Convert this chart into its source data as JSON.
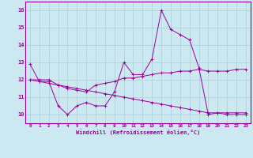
{
  "xlabel": "Windchill (Refroidissement éolien,°C)",
  "x": [
    0,
    1,
    2,
    3,
    4,
    5,
    6,
    7,
    8,
    9,
    10,
    11,
    12,
    13,
    14,
    15,
    16,
    17,
    18,
    19,
    20,
    21,
    22,
    23
  ],
  "line1": [
    12.9,
    11.9,
    11.9,
    10.5,
    10.0,
    10.5,
    10.7,
    10.5,
    10.5,
    11.3,
    13.0,
    12.3,
    12.3,
    13.2,
    16.0,
    14.9,
    14.6,
    14.3,
    12.7,
    10.0,
    10.1,
    10.1,
    10.1,
    10.1
  ],
  "line2": [
    12.0,
    12.0,
    12.0,
    11.7,
    11.5,
    11.4,
    11.3,
    11.7,
    11.8,
    11.9,
    12.1,
    12.1,
    12.2,
    12.3,
    12.4,
    12.4,
    12.5,
    12.5,
    12.6,
    12.5,
    12.5,
    12.5,
    12.6,
    12.6
  ],
  "line3": [
    12.0,
    11.9,
    11.8,
    11.7,
    11.6,
    11.5,
    11.4,
    11.3,
    11.2,
    11.1,
    11.0,
    10.9,
    10.8,
    10.7,
    10.6,
    10.5,
    10.4,
    10.3,
    10.2,
    10.1,
    10.1,
    10.0,
    10.0,
    10.0
  ],
  "line_color": "#990099",
  "bg_color": "#cce8f0",
  "grid_color": "#aacfdf",
  "ylim": [
    9.5,
    16.5
  ],
  "xlim": [
    -0.5,
    23.5
  ],
  "yticks": [
    10,
    11,
    12,
    13,
    14,
    15,
    16
  ],
  "xticks": [
    0,
    1,
    2,
    3,
    4,
    5,
    6,
    7,
    8,
    9,
    10,
    11,
    12,
    13,
    14,
    15,
    16,
    17,
    18,
    19,
    20,
    21,
    22,
    23
  ]
}
